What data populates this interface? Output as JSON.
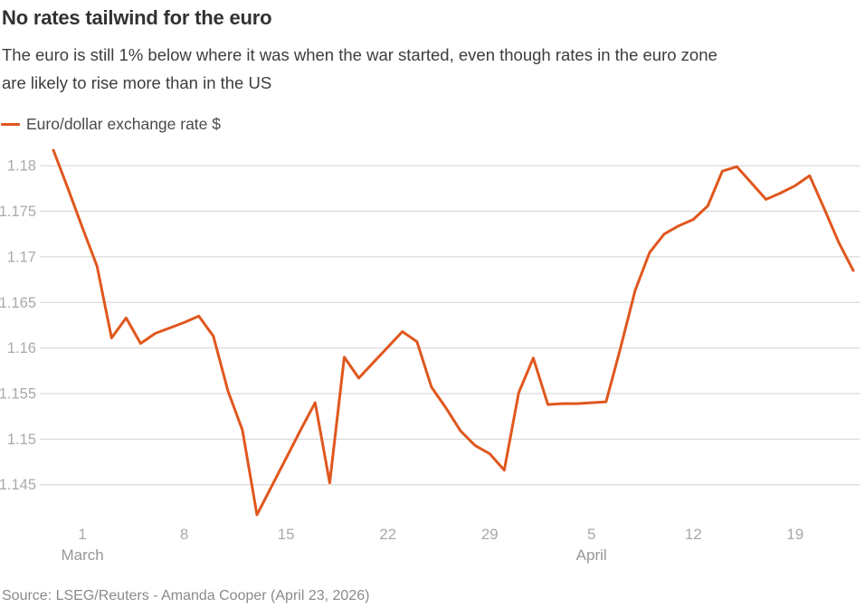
{
  "chart_data": {
    "type": "line",
    "title": "No rates tailwind for the euro",
    "subtitle_lines": [
      "The euro is still 1% below where it was when the war started, even though rates in the euro zone",
      "are likely to rise more than in the US"
    ],
    "xlabel": "",
    "ylabel": "",
    "grid": "horizontal",
    "legend_position": "top-left",
    "ylim": [
      1.1411,
      1.1823
    ],
    "y_ticks": [
      {
        "value": 1.18,
        "label": "1.18"
      },
      {
        "value": 1.175,
        "label": "1.175"
      },
      {
        "value": 1.17,
        "label": "1.17"
      },
      {
        "value": 1.165,
        "label": "1.165"
      },
      {
        "value": 1.16,
        "label": "1.16"
      },
      {
        "value": 1.155,
        "label": "1.155"
      },
      {
        "value": 1.15,
        "label": "1.15"
      },
      {
        "value": 1.145,
        "label": "1.145"
      }
    ],
    "x_ticks": [
      {
        "label": "1",
        "index": 2
      },
      {
        "label": "8",
        "index": 9
      },
      {
        "label": "15",
        "index": 16
      },
      {
        "label": "22",
        "index": 23
      },
      {
        "label": "29",
        "index": 30
      },
      {
        "label": "5",
        "index": 37
      },
      {
        "label": "12",
        "index": 44
      },
      {
        "label": "19",
        "index": 51
      }
    ],
    "month_labels": [
      {
        "label": "March",
        "index": 2
      },
      {
        "label": "April",
        "index": 37
      }
    ],
    "series": [
      {
        "name": "Euro/dollar exchange rate $",
        "color": "#e0571e",
        "x": [
          "Feb 27",
          "Feb 28",
          "Mar 1",
          "Mar 2",
          "Mar 3",
          "Mar 4",
          "Mar 5",
          "Mar 6",
          "Mar 7",
          "Mar 8",
          "Mar 9",
          "Mar 10",
          "Mar 11",
          "Mar 12",
          "Mar 13",
          "Mar 14",
          "Mar 15",
          "Mar 16",
          "Mar 17",
          "Mar 18",
          "Mar 19",
          "Mar 20",
          "Mar 21",
          "Mar 22",
          "Mar 23",
          "Mar 24",
          "Mar 25",
          "Mar 26",
          "Mar 27",
          "Mar 28",
          "Mar 29",
          "Mar 30",
          "Mar 31",
          "Apr 1",
          "Apr 2",
          "Apr 3",
          "Apr 4",
          "Apr 5",
          "Apr 6",
          "Apr 7",
          "Apr 8",
          "Apr 9",
          "Apr 10",
          "Apr 11",
          "Apr 12",
          "Apr 13",
          "Apr 14",
          "Apr 15",
          "Apr 16",
          "Apr 17",
          "Apr 18",
          "Apr 19",
          "Apr 20",
          "Apr 21",
          "Apr 22",
          "Apr 23"
        ],
        "values": [
          1.1817,
          1.1775,
          1.1732,
          1.169,
          1.1611,
          1.1633,
          1.1605,
          1.1616,
          1.1622,
          1.1628,
          1.1635,
          1.1613,
          1.1553,
          1.151,
          1.1417,
          1.1448,
          1.1479,
          1.151,
          1.154,
          1.1452,
          1.159,
          1.1567,
          1.1584,
          1.1601,
          1.1618,
          1.1607,
          1.1557,
          1.1534,
          1.1509,
          1.1493,
          1.1484,
          1.1466,
          1.1551,
          1.1589,
          1.1538,
          1.1539,
          1.1539,
          1.154,
          1.1541,
          1.16,
          1.1663,
          1.1705,
          1.1725,
          1.1734,
          1.1741,
          1.1756,
          1.1794,
          1.1799,
          1.1781,
          1.1763,
          1.177,
          1.1778,
          1.1789,
          1.1753,
          1.1716,
          1.1685
        ]
      }
    ]
  },
  "source": {
    "text": "Source: LSEG/Reuters - Amanda Cooper (April 23, 2026)"
  },
  "colors": {
    "line": "#e0571e",
    "grid": "#d9d9d9",
    "tick_text": "#a9a9a9",
    "month_text": "#979797",
    "title": "#323232",
    "subtitle": "#3d3d3d",
    "legend_text": "#4a4a4a",
    "source_text": "#8a8a8a"
  }
}
